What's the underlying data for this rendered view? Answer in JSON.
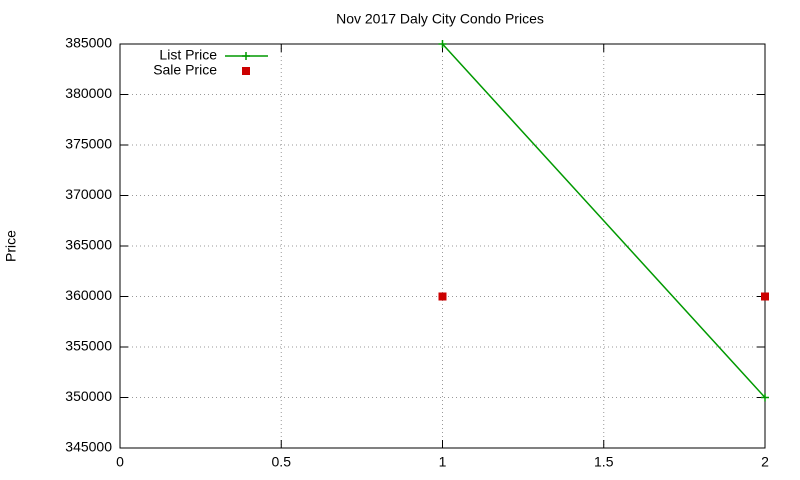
{
  "chart_data": {
    "type": "line",
    "title": "Nov 2017 Daly City Condo Prices",
    "y_label": "Price",
    "x": [
      1,
      2
    ],
    "series": [
      {
        "name": "List Price",
        "color": "#009900",
        "mode": "lines+markers",
        "values": [
          385000,
          350000
        ]
      },
      {
        "name": "Sale Price",
        "color": "#cc0000",
        "mode": "markers",
        "values": [
          360000,
          360000
        ]
      }
    ],
    "xlim": [
      0,
      2
    ],
    "xticks": [
      0,
      0.5,
      1,
      1.5,
      2
    ],
    "ylim": [
      345000,
      385000
    ],
    "yticks": [
      345000,
      350000,
      355000,
      360000,
      365000,
      370000,
      375000,
      380000,
      385000
    ],
    "grid": true,
    "legend": "top-left"
  }
}
